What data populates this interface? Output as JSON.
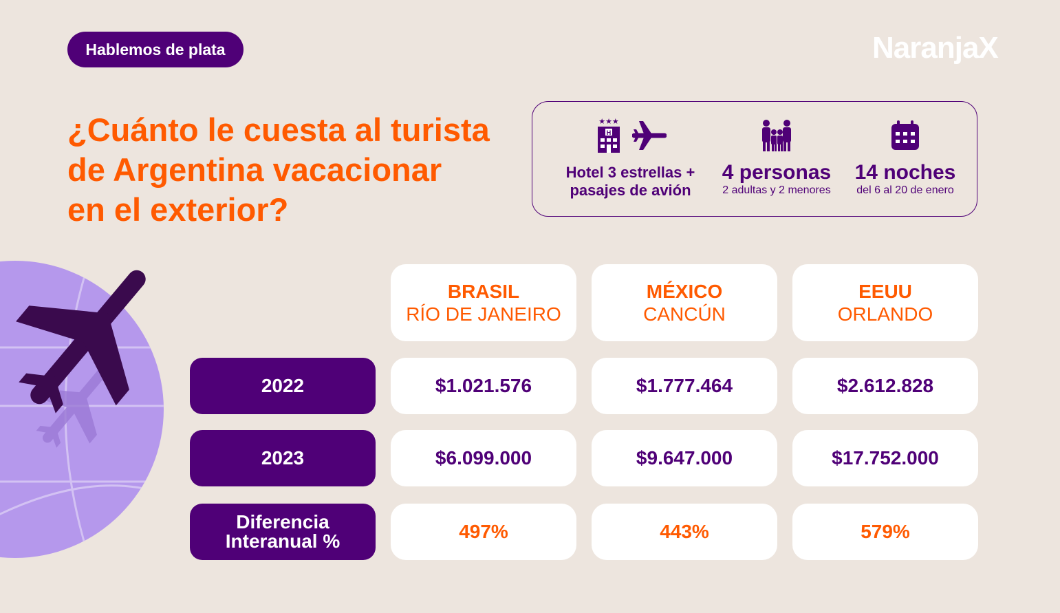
{
  "badge": "Hablemos de plata",
  "logo": "NaranjaX",
  "headline": {
    "line1": "¿Cuánto le cuesta al turista",
    "line2": "de Argentina vacacionar",
    "line3": "en el exterior?"
  },
  "info": {
    "package": {
      "line1": "Hotel 3 estrellas +",
      "line2": "pasajes de avión",
      "icons": [
        "hotel-icon",
        "airplane-icon"
      ]
    },
    "people": {
      "title": "4 personas",
      "subtitle": "2 adultas y 2 menores",
      "icon": "family-icon"
    },
    "nights": {
      "title": "14 noches",
      "subtitle": "del 6 al 20 de enero",
      "icon": "calendar-icon"
    }
  },
  "table": {
    "destinations": [
      {
        "country": "BRASIL",
        "city": "RÍO DE JANEIRO"
      },
      {
        "country": "MÉXICO",
        "city": "CANCÚN"
      },
      {
        "country": "EEUU",
        "city": "ORLANDO"
      }
    ],
    "rows": [
      {
        "label": "2022",
        "values": [
          "$1.021.576",
          "$1.777.464",
          "$2.612.828"
        ]
      },
      {
        "label": "2023",
        "values": [
          "$6.099.000",
          "$9.647.000",
          "$17.752.000"
        ]
      },
      {
        "label_line1": "Diferencia",
        "label_line2": "Interanual %",
        "values": [
          "497%",
          "443%",
          "579%"
        ]
      }
    ]
  },
  "colors": {
    "purple": "#4f0077",
    "orange": "#ff5a00",
    "background": "#ede5de",
    "globe": "#b598ec"
  }
}
